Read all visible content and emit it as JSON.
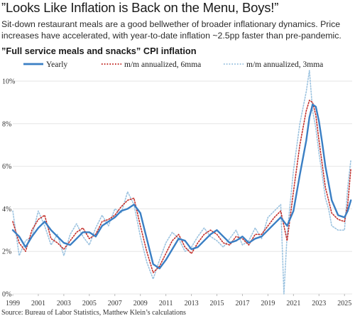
{
  "title": "”Looks Like Inflation is Back on the Menu, Boys!”",
  "subtitle": "Sit-down restaurant meals are a good bellwether of broader inflationary dynamics. Price increases have accelerated, with year-to-date inflation ~2.5pp faster than pre-pandemic.",
  "chart_heading": "”Full service meals and snacks” CPI inflation",
  "source": "Source: Bureau of Labor Statistics, Matthew Klein’s calculations",
  "colors": {
    "yearly": "#3a7fc4",
    "six_mma": "#c4302b",
    "three_mma": "#9cc3e0",
    "grid": "#e6e6e6"
  },
  "chart_data": {
    "type": "line",
    "title": "”Full service meals and snacks” CPI inflation",
    "xlabel": "",
    "ylabel": "",
    "xlim": [
      1999,
      2025.6
    ],
    "ylim": [
      0,
      10.2
    ],
    "x_ticks": [
      "1999",
      "2001",
      "2003",
      "2005",
      "2007",
      "2009",
      "2011",
      "2013",
      "2015",
      "2017",
      "2019",
      "2021",
      "2023",
      "2025"
    ],
    "y_ticks": [
      "0%",
      "2%",
      "4%",
      "6%",
      "8%",
      "10%"
    ],
    "y_tick_values": [
      0,
      2,
      4,
      6,
      8,
      10
    ],
    "grid": true,
    "legend_position": "top",
    "series": [
      {
        "name": "Yearly",
        "style": "solid",
        "x": [
          1999,
          1999.5,
          2000,
          2000.5,
          2001,
          2001.5,
          2002,
          2002.5,
          2003,
          2003.5,
          2004,
          2004.5,
          2005,
          2005.5,
          2006,
          2006.5,
          2007,
          2007.5,
          2008,
          2008.5,
          2009,
          2009.5,
          2010,
          2010.5,
          2011,
          2011.5,
          2012,
          2012.5,
          2013,
          2013.5,
          2014,
          2014.5,
          2015,
          2015.5,
          2016,
          2016.5,
          2017,
          2017.5,
          2018,
          2018.5,
          2019,
          2019.5,
          2020,
          2020.5,
          2021,
          2021.5,
          2022,
          2022.25,
          2022.5,
          2022.75,
          2023,
          2023.25,
          2023.5,
          2023.75,
          2024,
          2024.5,
          2025,
          2025.25,
          2025.5
        ],
        "y": [
          3.0,
          2.7,
          2.2,
          2.7,
          3.1,
          3.4,
          3.0,
          2.7,
          2.4,
          2.3,
          2.6,
          2.9,
          2.9,
          2.7,
          3.2,
          3.4,
          3.6,
          3.9,
          4.0,
          4.2,
          3.8,
          2.6,
          1.4,
          1.2,
          1.6,
          2.1,
          2.6,
          2.5,
          2.1,
          2.2,
          2.5,
          2.8,
          3.0,
          2.7,
          2.4,
          2.5,
          2.7,
          2.4,
          2.6,
          2.7,
          3.0,
          3.3,
          3.6,
          3.2,
          3.9,
          5.6,
          7.2,
          8.3,
          8.9,
          8.8,
          8.1,
          7.1,
          6.0,
          5.2,
          4.4,
          3.7,
          3.6,
          3.9,
          4.4
        ]
      },
      {
        "name": "m/m annualized, 6mma",
        "style": "dotted",
        "x": [
          1999,
          1999.5,
          2000,
          2000.5,
          2001,
          2001.5,
          2002,
          2002.5,
          2003,
          2003.5,
          2004,
          2004.5,
          2005,
          2005.5,
          2006,
          2006.5,
          2007,
          2007.5,
          2008,
          2008.5,
          2009,
          2009.5,
          2010,
          2010.5,
          2011,
          2011.5,
          2012,
          2012.5,
          2013,
          2013.5,
          2014,
          2014.5,
          2015,
          2015.5,
          2016,
          2016.5,
          2017,
          2017.5,
          2018,
          2018.5,
          2019,
          2019.5,
          2020,
          2020.5,
          2021,
          2021.5,
          2022,
          2022.25,
          2022.5,
          2022.75,
          2023,
          2023.25,
          2023.5,
          2023.75,
          2024,
          2024.5,
          2025,
          2025.25,
          2025.5
        ],
        "y": [
          3.4,
          2.4,
          2.0,
          3.0,
          3.5,
          3.7,
          2.6,
          2.4,
          2.1,
          2.5,
          2.9,
          3.1,
          2.6,
          2.8,
          3.4,
          3.5,
          3.7,
          4.1,
          4.4,
          4.5,
          3.2,
          2.0,
          1.0,
          1.3,
          1.9,
          2.5,
          2.8,
          2.2,
          1.9,
          2.4,
          2.8,
          3.0,
          2.8,
          2.4,
          2.3,
          2.7,
          2.6,
          2.3,
          2.8,
          2.8,
          3.2,
          3.6,
          3.9,
          2.5,
          4.8,
          7.0,
          8.6,
          9.1,
          9.0,
          8.4,
          7.2,
          6.1,
          5.0,
          4.4,
          3.8,
          3.5,
          3.4,
          4.2,
          5.9
        ]
      },
      {
        "name": "m/m annualized, 3mma",
        "style": "dotted",
        "x": [
          1999,
          1999.5,
          2000,
          2000.5,
          2001,
          2001.5,
          2002,
          2002.5,
          2003,
          2003.5,
          2004,
          2004.5,
          2005,
          2005.5,
          2006,
          2006.5,
          2007,
          2007.5,
          2008,
          2008.5,
          2009,
          2009.5,
          2010,
          2010.5,
          2011,
          2011.5,
          2012,
          2012.5,
          2013,
          2013.5,
          2014,
          2014.5,
          2015,
          2015.5,
          2016,
          2016.5,
          2017,
          2017.5,
          2018,
          2018.5,
          2019,
          2019.5,
          2020,
          2020.25,
          2020.5,
          2021,
          2021.5,
          2022,
          2022.25,
          2022.5,
          2022.75,
          2023,
          2023.25,
          2023.5,
          2023.75,
          2024,
          2024.5,
          2025,
          2025.25,
          2025.5
        ],
        "y": [
          3.9,
          1.8,
          2.5,
          2.7,
          3.9,
          3.2,
          2.3,
          2.8,
          1.8,
          2.8,
          3.3,
          2.7,
          2.3,
          3.1,
          3.7,
          3.2,
          4.0,
          3.8,
          4.8,
          4.2,
          2.7,
          1.5,
          0.7,
          1.6,
          2.4,
          2.9,
          2.6,
          2.0,
          2.2,
          2.7,
          3.1,
          2.7,
          2.5,
          2.2,
          2.6,
          3.0,
          2.3,
          2.5,
          3.1,
          2.6,
          3.6,
          3.9,
          4.2,
          0.0,
          2.8,
          5.8,
          8.0,
          9.5,
          10.5,
          8.6,
          7.8,
          6.6,
          5.6,
          4.5,
          4.0,
          3.2,
          3.0,
          3.0,
          5.0,
          6.3
        ]
      }
    ]
  }
}
